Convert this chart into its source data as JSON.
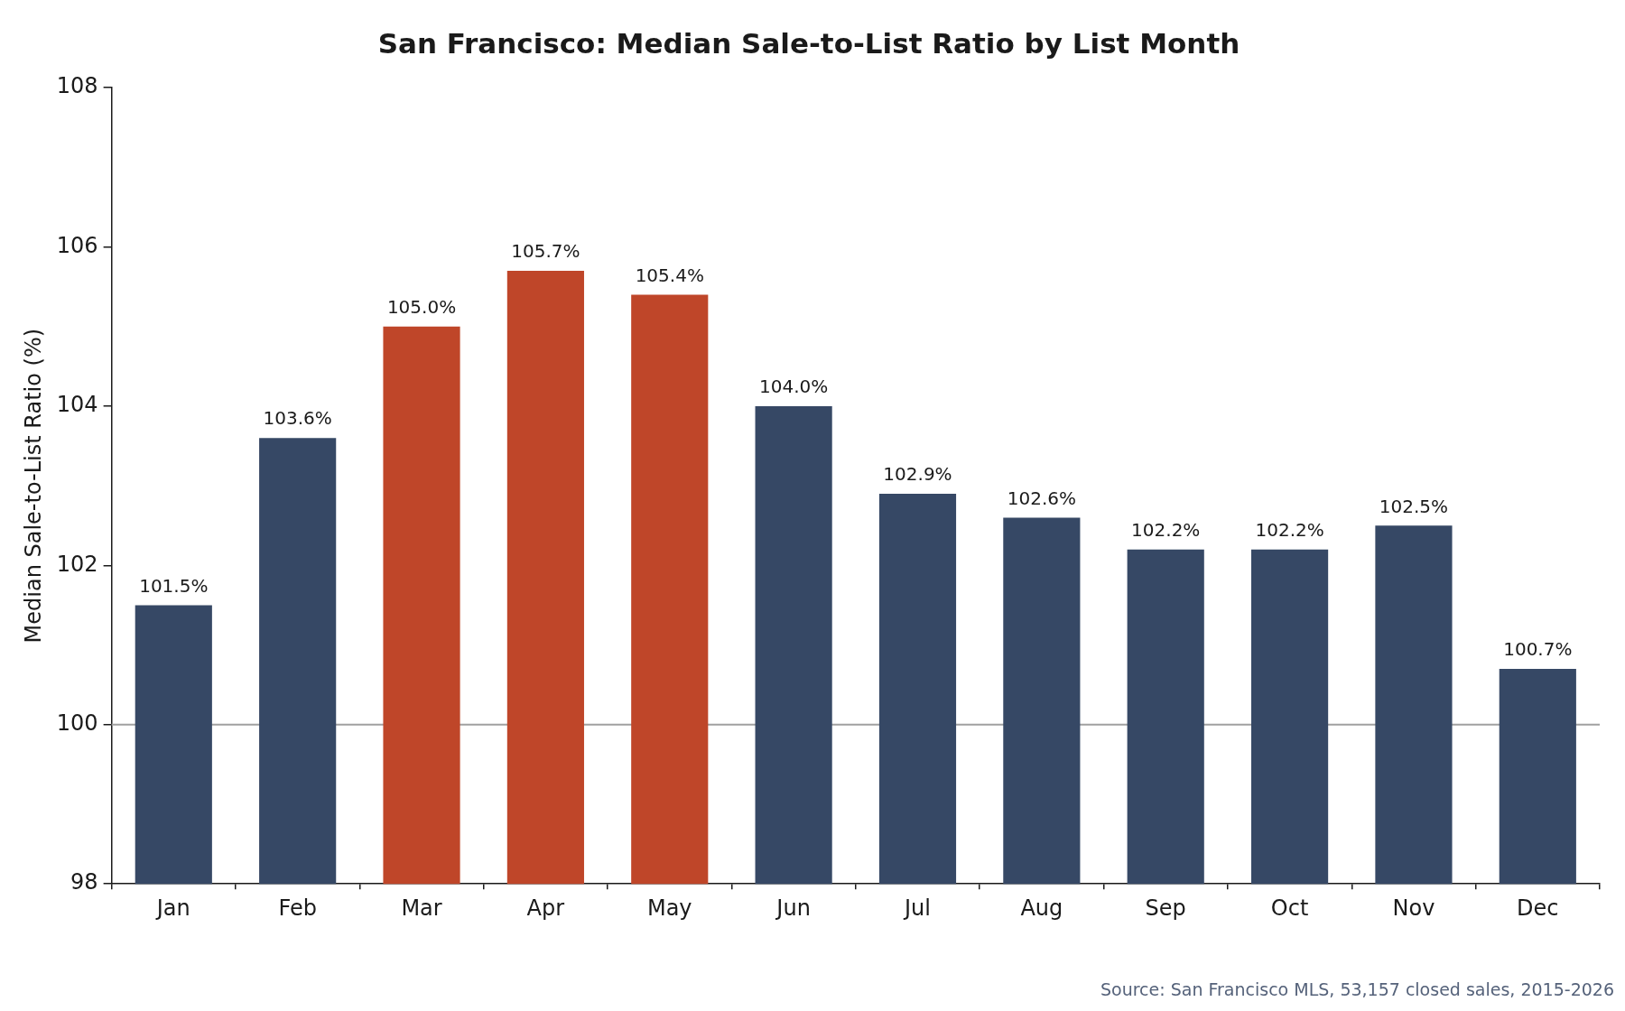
{
  "chart_data": {
    "type": "bar",
    "title": "San Francisco: Median Sale-to-List Ratio by List Month",
    "ylabel": "Median Sale-to-List Ratio (%)",
    "categories": [
      "Jan",
      "Feb",
      "Mar",
      "Apr",
      "May",
      "Jun",
      "Jul",
      "Aug",
      "Sep",
      "Oct",
      "Nov",
      "Dec"
    ],
    "values": [
      101.5,
      103.6,
      105.0,
      105.7,
      105.4,
      104.0,
      102.9,
      102.6,
      102.2,
      102.2,
      102.5,
      100.7
    ],
    "value_labels": [
      "101.5%",
      "103.6%",
      "105.0%",
      "105.7%",
      "105.4%",
      "104.0%",
      "102.9%",
      "102.6%",
      "102.2%",
      "102.2%",
      "102.5%",
      "100.7%"
    ],
    "colors": [
      "#364865",
      "#364865",
      "#bf4629",
      "#bf4629",
      "#bf4629",
      "#364865",
      "#364865",
      "#364865",
      "#364865",
      "#364865",
      "#364865",
      "#364865"
    ],
    "ylim": [
      98,
      108
    ],
    "yticks": [
      98,
      100,
      102,
      104,
      106,
      108
    ],
    "ref_lines": [
      {
        "axis": "y",
        "value": 100,
        "color": "#a0a0a0"
      }
    ],
    "annotations": [
      "Source: San Francisco MLS, 53,157 closed sales, 2015-2026"
    ],
    "grid": false,
    "legend": false
  }
}
